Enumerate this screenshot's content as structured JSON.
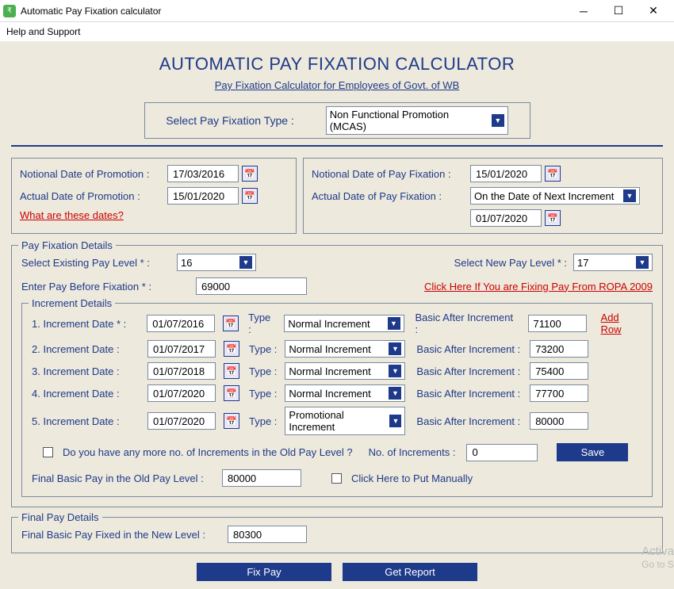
{
  "window": {
    "title": "Automatic Pay Fixation calculator",
    "menu": "Help and Support"
  },
  "header": {
    "title": "AUTOMATIC PAY FIXATION CALCULATOR",
    "subtitle": "Pay Fixation Calculator for Employees of Govt. of WB",
    "type_label": "Select Pay Fixation Type :",
    "type_value": "Non Functional Promotion (MCAS)"
  },
  "left_panel": {
    "notional_label": "Notional Date of Promotion :",
    "notional_value": "17/03/2016",
    "actual_label": "Actual Date of Promotion :",
    "actual_value": "15/01/2020",
    "help_link": "What are these dates?"
  },
  "right_panel": {
    "notional_label": "Notional Date of Pay Fixation :",
    "notional_value": "15/01/2020",
    "actual_label": "Actual Date of Pay Fixation :",
    "actual_value": "On the Date of Next Increment",
    "date_value": "01/07/2020"
  },
  "pay_fixation": {
    "legend": "Pay Fixation Details",
    "existing_label": "Select Existing Pay Level * :",
    "existing_value": "16",
    "new_label": "Select New Pay Level * :",
    "new_value": "17",
    "before_label": "Enter Pay Before Fixation * :",
    "before_value": "69000",
    "ropa_link": "Click Here If You are Fixing Pay From ROPA 2009"
  },
  "increments": {
    "legend": "Increment Details",
    "add_row": "Add Row",
    "type_label": "Type :",
    "basic_label": "Basic After Increment :",
    "rows": [
      {
        "label": "1. Increment Date * :",
        "date": "01/07/2016",
        "type": "Normal Increment",
        "basic": "71100"
      },
      {
        "label": "2. Increment Date :",
        "date": "01/07/2017",
        "type": "Normal Increment",
        "basic": "73200"
      },
      {
        "label": "3. Increment Date :",
        "date": "01/07/2018",
        "type": "Normal Increment",
        "basic": "75400"
      },
      {
        "label": "4. Increment Date :",
        "date": "01/07/2020",
        "type": "Normal Increment",
        "basic": "77700"
      },
      {
        "label": "5. Increment Date :",
        "date": "01/07/2020",
        "type": "Promotional Increment",
        "basic": "80000"
      }
    ],
    "more_label": "Do you have any more no. of Increments in the Old Pay Level ?",
    "num_label": "No. of Increments :",
    "num_value": "0",
    "save_btn": "Save",
    "final_old_label": "Final Basic Pay in the Old Pay Level :",
    "final_old_value": "80000",
    "manual_label": "Click Here to Put Manually"
  },
  "final": {
    "legend": "Final Pay Details",
    "label": "Final Basic Pay Fixed in the New Level :",
    "value": "80300"
  },
  "buttons": {
    "fix": "Fix Pay",
    "report": "Get Report"
  },
  "watermark": {
    "l1": "Activa",
    "l2": "Go to S"
  }
}
